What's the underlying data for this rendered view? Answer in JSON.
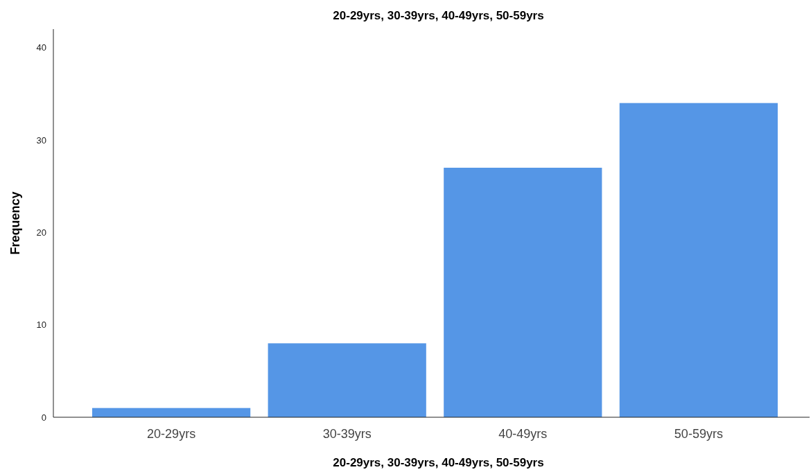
{
  "chart_data": {
    "type": "bar",
    "title": "20-29yrs, 30-39yrs, 40-49yrs, 50-59yrs",
    "xlabel": "20-29yrs, 30-39yrs, 40-49yrs, 50-59yrs",
    "ylabel": "Frequency",
    "categories": [
      "20-29yrs",
      "30-39yrs",
      "40-49yrs",
      "50-59yrs"
    ],
    "values": [
      1,
      8,
      27,
      34
    ],
    "color": "#5596e6",
    "ylim": [
      0,
      42
    ],
    "yticks": [
      0,
      10,
      20,
      30,
      40
    ],
    "grid": false
  }
}
